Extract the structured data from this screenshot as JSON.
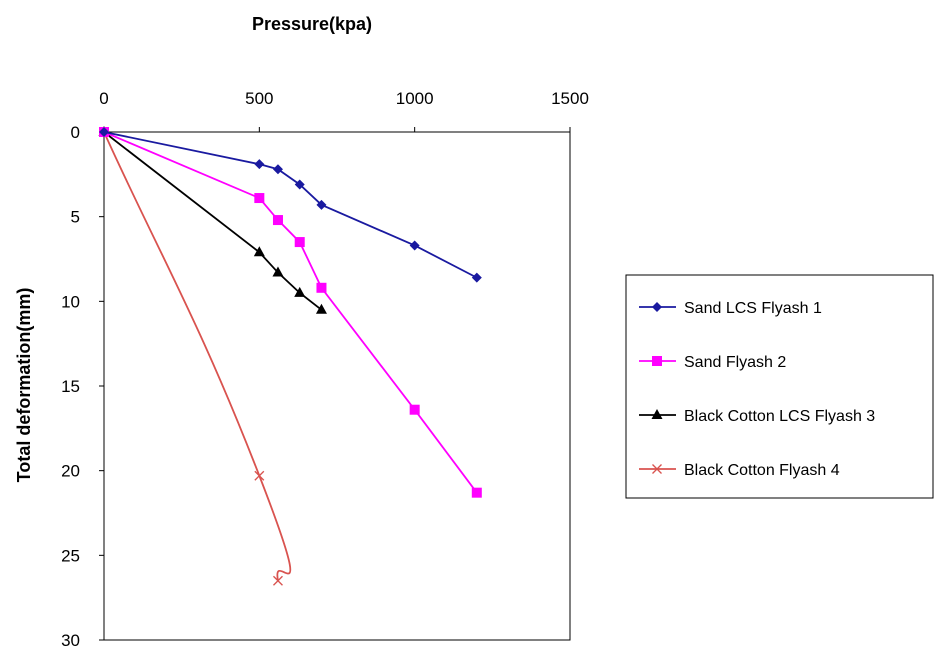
{
  "chart_data": {
    "type": "line",
    "title": "",
    "xlabel": "Pressure(kpa)",
    "ylabel": "Total deformation(mm)",
    "x_axis_position": "top",
    "y_axis_inverted": true,
    "xlim": [
      0,
      1500
    ],
    "ylim": [
      0,
      30
    ],
    "xticks": [
      0,
      500,
      1000,
      1500
    ],
    "yticks": [
      0,
      5,
      10,
      15,
      20,
      25,
      30
    ],
    "xtick_labels": [
      "0",
      "500",
      "1000",
      "1500"
    ],
    "ytick_labels": [
      "0",
      "5",
      "10",
      "15",
      "20",
      "25",
      "30"
    ],
    "grid": false,
    "legend_position": "right",
    "series": [
      {
        "name": "Sand LCS Flyash 1",
        "color": "#1a1aa0",
        "marker": "diamond",
        "smooth": false,
        "x": [
          0,
          500,
          560,
          630,
          700,
          1000,
          1200
        ],
        "y": [
          0,
          1.9,
          2.2,
          3.1,
          4.3,
          6.7,
          8.6
        ]
      },
      {
        "name": "Sand Flyash 2",
        "color": "#ff00ff",
        "marker": "square",
        "smooth": false,
        "x": [
          0,
          500,
          560,
          630,
          700,
          1000,
          1200
        ],
        "y": [
          0,
          3.9,
          5.2,
          6.5,
          9.2,
          16.4,
          21.3
        ]
      },
      {
        "name": "Black Cotton LCS Flyash 3",
        "color": "#000000",
        "marker": "triangle",
        "smooth": false,
        "x": [
          0,
          500,
          560,
          630,
          700
        ],
        "y": [
          0,
          7.1,
          8.3,
          9.5,
          10.5
        ]
      },
      {
        "name": "Black Cotton Flyash 4",
        "color": "#d9534f",
        "marker": "x",
        "smooth": true,
        "x": [
          0,
          500,
          560
        ],
        "y": [
          0,
          20.3,
          26.5
        ]
      }
    ]
  }
}
